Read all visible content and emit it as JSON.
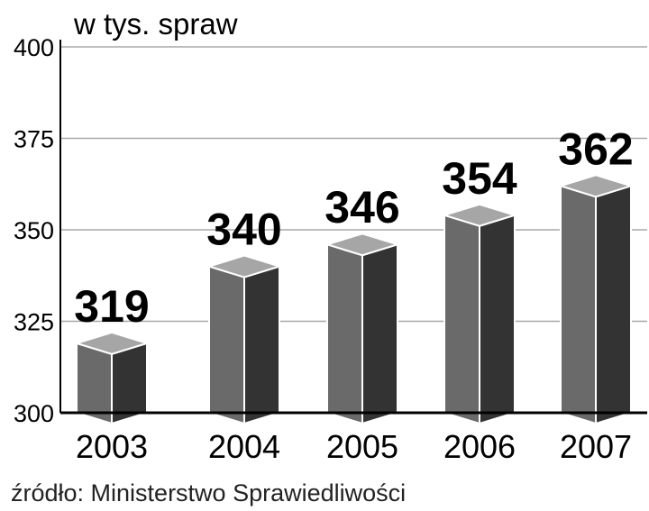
{
  "chart_data": {
    "type": "bar",
    "unit_label": "w tys. spraw",
    "categories": [
      "2003",
      "2004",
      "2005",
      "2006",
      "2007"
    ],
    "values": [
      319,
      340,
      346,
      354,
      362
    ],
    "ylim": [
      300,
      400
    ],
    "yticks": [
      "300",
      "325",
      "350",
      "375",
      "400"
    ],
    "grid": true,
    "source": "źródło: Ministerstwo Sprawiedliwości"
  },
  "colors": {
    "bar_front": "#6a6a6a",
    "bar_side": "#333333",
    "bar_top": "#a6a6a6",
    "grid": "#a8a8a8"
  }
}
